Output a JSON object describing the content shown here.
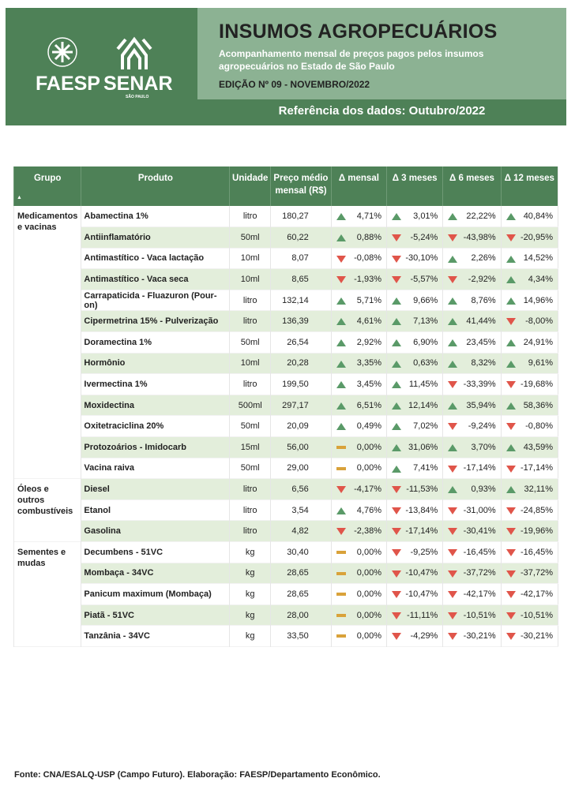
{
  "header": {
    "title": "INSUMOS AGROPECUÁRIOS",
    "subtitle": "Acompanhamento mensal de preços pagos pelos insumos agropecuários no Estado de São Paulo",
    "edition": "EDIÇÃO Nº 09 - NOVEMBRO/2022",
    "reference": "Referência dos dados: Outubro/2022",
    "logo_faesp": "FAESP",
    "logo_senar": "SENAR",
    "logo_senar_sub": "SÃO PAULO"
  },
  "table": {
    "columns": [
      "Grupo",
      "Produto",
      "Unidade",
      "Preço médio mensal (R$)",
      "Δ mensal",
      "Δ 3 meses",
      "Δ 6 meses",
      "Δ 12 meses"
    ],
    "sort_indicator": "▲",
    "groups": [
      {
        "name": "Medicamentos e vacinas",
        "rows": 13
      },
      {
        "name": "Óleos e outros combustíveis",
        "rows": 3
      },
      {
        "name": "Sementes e mudas",
        "rows": 5
      }
    ],
    "rows": [
      [
        "Abamectina 1%",
        "litro",
        "180,27",
        "4,71%",
        "3,01%",
        "22,22%",
        "40,84%"
      ],
      [
        "Antiinflamatório",
        "50ml",
        "60,22",
        "0,88%",
        "-5,24%",
        "-43,98%",
        "-20,95%"
      ],
      [
        "Antimastítico - Vaca lactação",
        "10ml",
        "8,07",
        "-0,08%",
        "-30,10%",
        "2,26%",
        "14,52%"
      ],
      [
        "Antimastítico - Vaca seca",
        "10ml",
        "8,65",
        "-1,93%",
        "-5,57%",
        "-2,92%",
        "4,34%"
      ],
      [
        "Carrapaticida - Fluazuron (Pour-on)",
        "litro",
        "132,14",
        "5,71%",
        "9,66%",
        "8,76%",
        "14,96%"
      ],
      [
        "Cipermetrina 15% - Pulverização",
        "litro",
        "136,39",
        "4,61%",
        "7,13%",
        "41,44%",
        "-8,00%"
      ],
      [
        "Doramectina 1%",
        "50ml",
        "26,54",
        "2,92%",
        "6,90%",
        "23,45%",
        "24,91%"
      ],
      [
        "Hormônio",
        "10ml",
        "20,28",
        "3,35%",
        "0,63%",
        "8,32%",
        "9,61%"
      ],
      [
        "Ivermectina 1%",
        "litro",
        "199,50",
        "3,45%",
        "11,45%",
        "-33,39%",
        "-19,68%"
      ],
      [
        "Moxidectina",
        "500ml",
        "297,17",
        "6,51%",
        "12,14%",
        "35,94%",
        "58,36%"
      ],
      [
        "Oxitetraciclina 20%",
        "50ml",
        "20,09",
        "0,49%",
        "7,02%",
        "-9,24%",
        "-0,80%"
      ],
      [
        "Protozoários - Imidocarb",
        "15ml",
        "56,00",
        "0,00%",
        "31,06%",
        "3,70%",
        "43,59%"
      ],
      [
        "Vacina raiva",
        "50ml",
        "29,00",
        "0,00%",
        "7,41%",
        "-17,14%",
        "-17,14%"
      ],
      [
        "Diesel",
        "litro",
        "6,56",
        "-4,17%",
        "-11,53%",
        "0,93%",
        "32,11%"
      ],
      [
        "Etanol",
        "litro",
        "3,54",
        "4,76%",
        "-13,84%",
        "-31,00%",
        "-24,85%"
      ],
      [
        "Gasolina",
        "litro",
        "4,82",
        "-2,38%",
        "-17,14%",
        "-30,41%",
        "-19,96%"
      ],
      [
        "Decumbens - 51VC",
        "kg",
        "30,40",
        "0,00%",
        "-9,25%",
        "-16,45%",
        "-16,45%"
      ],
      [
        "Mombaça - 34VC",
        "kg",
        "28,65",
        "0,00%",
        "-10,47%",
        "-37,72%",
        "-37,72%"
      ],
      [
        "Panicum maximum (Mombaça)",
        "kg",
        "28,65",
        "0,00%",
        "-10,47%",
        "-42,17%",
        "-42,17%"
      ],
      [
        "Piatã - 51VC",
        "kg",
        "28,00",
        "0,00%",
        "-11,11%",
        "-10,51%",
        "-10,51%"
      ],
      [
        "Tanzânia - 34VC",
        "kg",
        "33,50",
        "0,00%",
        "-4,29%",
        "-30,21%",
        "-30,21%"
      ]
    ]
  },
  "footer": "Fonte: CNA/ESALQ-USP (Campo Futuro). Elaboração: FAESP/Departamento Econômico.",
  "colors": {
    "dark_green": "#4e8157",
    "light_green": "#8cb293",
    "row_alt": "#e3eedb",
    "up": "#5a9a68",
    "down": "#e0554a",
    "flat": "#d9a23a"
  }
}
